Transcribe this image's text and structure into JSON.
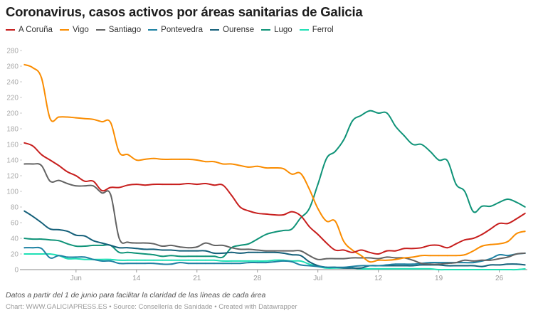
{
  "title": "Coronavirus, casos activos por áreas sanitarias de Galicia",
  "footer": {
    "note": "Datos a partir del 1 de junio para facilitar la claridad de las líneas de cada área",
    "credit_chart_label": "Chart:",
    "credit_chart": "WWW.GALICIAPRESS.ES",
    "credit_source_label": "Source:",
    "credit_source": "Consellería de Sanidade",
    "credit_tool": "Created with Datawrapper"
  },
  "chart_data": {
    "type": "line",
    "title": "Coronavirus, casos activos por áreas sanitarias de Galicia",
    "xlabel": "",
    "ylabel": "",
    "x_start": "1 Jun",
    "x_end": "29 Jul",
    "x_unit": "day",
    "ylim": [
      0,
      280
    ],
    "y_ticks": [
      0,
      20,
      40,
      60,
      80,
      100,
      120,
      140,
      160,
      180,
      200,
      220,
      240,
      260,
      280
    ],
    "x_ticks": [
      {
        "label": "Jun",
        "day_index": 6
      },
      {
        "label": "14",
        "day_index": 13
      },
      {
        "label": "21",
        "day_index": 20
      },
      {
        "label": "28",
        "day_index": 27
      },
      {
        "label": "Jul",
        "day_index": 34
      },
      {
        "label": "12",
        "day_index": 41
      },
      {
        "label": "19",
        "day_index": 48
      },
      {
        "label": "26",
        "day_index": 55
      }
    ],
    "grid": false,
    "legend_position": "top-left",
    "series": [
      {
        "name": "A Coruña",
        "color": "#c71e1d",
        "values": [
          162,
          158,
          147,
          140,
          133,
          125,
          120,
          113,
          113,
          101,
          105,
          105,
          108,
          109,
          108,
          109,
          109,
          109,
          109,
          110,
          109,
          110,
          108,
          108,
          95,
          80,
          75,
          72,
          71,
          70,
          70,
          74,
          69,
          55,
          45,
          34,
          25,
          25,
          22,
          25,
          22,
          20,
          24,
          24,
          27,
          27,
          28,
          31,
          31,
          28,
          33,
          38,
          40,
          45,
          52,
          59,
          59,
          65,
          72
        ]
      },
      {
        "name": "Vigo",
        "color": "#fa8c00",
        "values": [
          262,
          258,
          245,
          193,
          195,
          195,
          194,
          193,
          192,
          189,
          188,
          150,
          147,
          140,
          141,
          142,
          141,
          141,
          141,
          141,
          140,
          138,
          138,
          135,
          135,
          133,
          131,
          132,
          130,
          130,
          129,
          122,
          123,
          103,
          78,
          62,
          62,
          36,
          25,
          18,
          10,
          12,
          12,
          13,
          15,
          16,
          18,
          18,
          18,
          18,
          18,
          19,
          24,
          30,
          32,
          33,
          36,
          46,
          49
        ]
      },
      {
        "name": "Santiago",
        "color": "#636363",
        "values": [
          135,
          135,
          133,
          113,
          114,
          110,
          107,
          107,
          107,
          98,
          96,
          40,
          35,
          34,
          34,
          33,
          30,
          31,
          29,
          28,
          29,
          34,
          31,
          31,
          28,
          26,
          26,
          25,
          24,
          24,
          24,
          24,
          24,
          18,
          13,
          14,
          14,
          14,
          15,
          15,
          15,
          14,
          16,
          15,
          15,
          12,
          8,
          7,
          7,
          8,
          9,
          12,
          11,
          12,
          12,
          14,
          16,
          20,
          21
        ]
      },
      {
        "name": "Pontevedra",
        "color": "#1d81a2",
        "values": [
          28,
          28,
          27,
          15,
          18,
          16,
          16,
          16,
          13,
          11,
          11,
          8,
          8,
          8,
          8,
          8,
          7,
          7,
          9,
          8,
          8,
          8,
          8,
          8,
          8,
          8,
          9,
          9,
          9,
          10,
          11,
          10,
          6,
          5,
          4,
          3,
          3,
          3,
          4,
          5,
          5,
          5,
          6,
          7,
          7,
          7,
          8,
          9,
          9,
          9,
          9,
          9,
          9,
          11,
          14,
          19,
          18,
          20,
          21
        ]
      },
      {
        "name": "Ourense",
        "color": "#15607a",
        "values": [
          75,
          68,
          60,
          52,
          51,
          49,
          44,
          43,
          37,
          34,
          31,
          28,
          28,
          27,
          26,
          26,
          25,
          25,
          24,
          24,
          24,
          24,
          21,
          21,
          22,
          21,
          22,
          22,
          22,
          22,
          21,
          19,
          18,
          10,
          5,
          3,
          3,
          2,
          2,
          2,
          5,
          5,
          5,
          5,
          5,
          5,
          6,
          6,
          6,
          5,
          5,
          5,
          5,
          4,
          6,
          6,
          7,
          7,
          6
        ]
      },
      {
        "name": "Lugo",
        "color": "#0f9378",
        "values": [
          40,
          39,
          39,
          38,
          37,
          33,
          30,
          30,
          31,
          31,
          31,
          22,
          22,
          21,
          20,
          19,
          17,
          18,
          17,
          17,
          17,
          17,
          17,
          16,
          28,
          31,
          33,
          39,
          45,
          48,
          50,
          52,
          66,
          78,
          109,
          142,
          151,
          166,
          190,
          197,
          203,
          200,
          200,
          183,
          171,
          160,
          160,
          151,
          140,
          139,
          109,
          100,
          74,
          81,
          81,
          86,
          90,
          86,
          80
        ]
      },
      {
        "name": "Ferrol",
        "color": "#1ee0b5",
        "values": [
          20,
          20,
          20,
          20,
          18,
          14,
          14,
          13,
          13,
          13,
          13,
          12,
          12,
          12,
          12,
          12,
          12,
          12,
          12,
          12,
          12,
          12,
          12,
          11,
          11,
          11,
          11,
          11,
          11,
          12,
          12,
          11,
          11,
          7,
          4,
          2,
          2,
          2,
          2,
          1,
          1,
          1,
          1,
          1,
          1,
          1,
          1,
          1,
          0,
          0,
          0,
          0,
          0,
          0,
          0,
          0,
          0,
          0,
          1
        ]
      }
    ]
  }
}
